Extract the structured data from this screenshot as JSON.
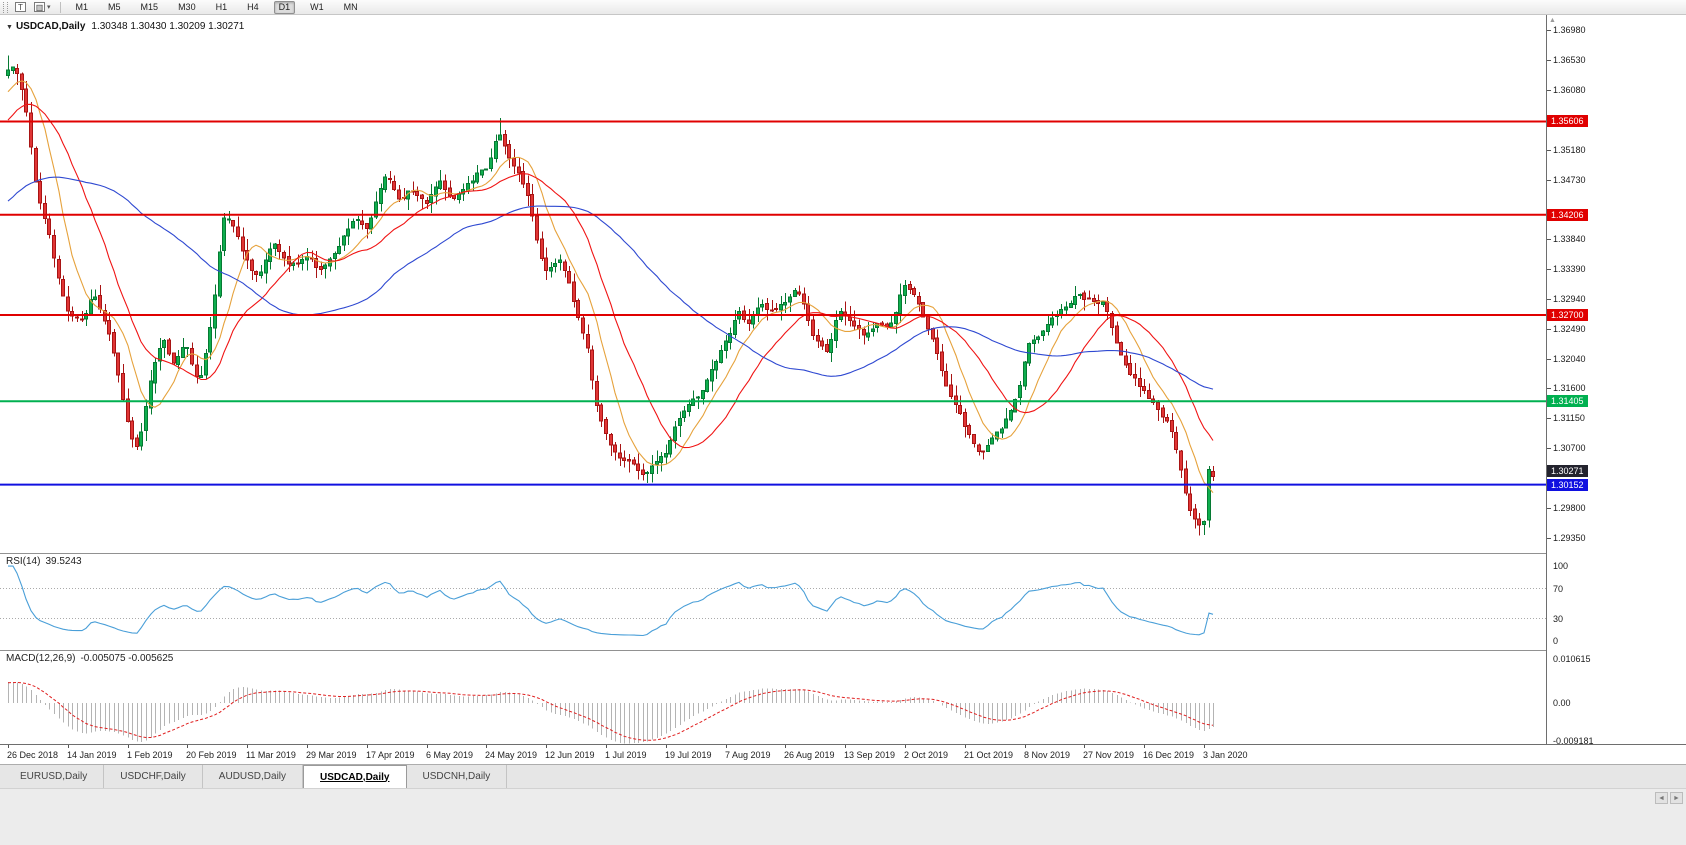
{
  "toolbar": {
    "timeframes": [
      "M1",
      "M5",
      "M15",
      "M30",
      "H1",
      "H4",
      "D1",
      "W1",
      "MN"
    ],
    "active_timeframe": "D1",
    "icons": {
      "cursor_tool": "T",
      "chart_template": "▥",
      "dropdown_caret": "▾"
    }
  },
  "chart": {
    "collapse_arrow": "▼",
    "symbol": "USDCAD,Daily",
    "ohlc": "1.30348 1.30430 1.30209 1.30271"
  },
  "rsi": {
    "name": "RSI(14)",
    "value": "39.5243",
    "color": "#4a9fd8",
    "levels": [
      70,
      30
    ],
    "axis_labels": [
      [
        "100",
        100
      ],
      [
        "70",
        70
      ],
      [
        "30",
        30
      ],
      [
        "0",
        0
      ]
    ]
  },
  "macd": {
    "name": "MACD(12,26,9)",
    "values": "-0.005075 -0.005625",
    "histogram_color": "#b4b4b4",
    "signal_color": "#e02020",
    "axis_labels": [
      [
        "0.010615",
        0.010615
      ],
      [
        "0.00",
        0
      ],
      [
        "-0.009181",
        -0.009181
      ]
    ]
  },
  "date_axis": {
    "labels": [
      "26 Dec 2018",
      "14 Jan 2019",
      "1 Feb 2019",
      "20 Feb 2019",
      "11 Mar 2019",
      "29 Mar 2019",
      "17 Apr 2019",
      "6 May 2019",
      "24 May 2019",
      "12 Jun 2019",
      "1 Jul 2019",
      "19 Jul 2019",
      "7 Aug 2019",
      "26 Aug 2019",
      "13 Sep 2019",
      "2 Oct 2019",
      "21 Oct 2019",
      "8 Nov 2019",
      "27 Nov 2019",
      "16 Dec 2019",
      "3 Jan 2020"
    ]
  },
  "tabs": {
    "items": [
      "EURUSD,Daily",
      "USDCHF,Daily",
      "AUDUSD,Daily",
      "USDCAD,Daily",
      "USDCNH,Daily"
    ],
    "active_index": 3
  },
  "misc": {
    "tab_scroll_left": "◄",
    "tab_scroll_right": "►",
    "axis_scroll_up": "▲"
  },
  "chart_data": {
    "type": "candlestick",
    "symbol": "USDCAD",
    "timeframe": "Daily",
    "last_bar": {
      "open": 1.30348,
      "high": 1.3043,
      "low": 1.30209,
      "close": 1.30271
    },
    "seed": 1337,
    "candle_count": 263,
    "label_every": 13,
    "axis_range": {
      "top": 1.37205,
      "bottom": 1.29125
    },
    "prehistory_anchors": [
      [
        -60,
        1.328
      ],
      [
        -45,
        1.332
      ],
      [
        -25,
        1.344
      ],
      [
        -10,
        1.356
      ],
      [
        -1,
        1.3638
      ]
    ],
    "price_anchors": [
      [
        0,
        1.3645
      ],
      [
        2,
        1.3638
      ],
      [
        4,
        1.358
      ],
      [
        6,
        1.347
      ],
      [
        9,
        1.339
      ],
      [
        13,
        1.3268
      ],
      [
        16,
        1.3255
      ],
      [
        19,
        1.3305
      ],
      [
        22,
        1.324
      ],
      [
        26,
        1.3105
      ],
      [
        28,
        1.3062
      ],
      [
        31,
        1.317
      ],
      [
        34,
        1.3245
      ],
      [
        36,
        1.3195
      ],
      [
        39,
        1.3225
      ],
      [
        42,
        1.3165
      ],
      [
        45,
        1.329
      ],
      [
        47,
        1.3435
      ],
      [
        50,
        1.339
      ],
      [
        52,
        1.335
      ],
      [
        55,
        1.333
      ],
      [
        58,
        1.3385
      ],
      [
        61,
        1.334
      ],
      [
        65,
        1.336
      ],
      [
        68,
        1.334
      ],
      [
        71,
        1.3355
      ],
      [
        75,
        1.3415
      ],
      [
        78,
        1.3395
      ],
      [
        82,
        1.349
      ],
      [
        85,
        1.344
      ],
      [
        88,
        1.3465
      ],
      [
        91,
        1.3435
      ],
      [
        94,
        1.3475
      ],
      [
        97,
        1.3445
      ],
      [
        100,
        1.3465
      ],
      [
        104,
        1.349
      ],
      [
        107,
        1.3545
      ],
      [
        109,
        1.35
      ],
      [
        112,
        1.3475
      ],
      [
        115,
        1.3385
      ],
      [
        117,
        1.3335
      ],
      [
        120,
        1.336
      ],
      [
        123,
        1.329
      ],
      [
        126,
        1.3225
      ],
      [
        128,
        1.313
      ],
      [
        130,
        1.309
      ],
      [
        133,
        1.306
      ],
      [
        136,
        1.304
      ],
      [
        139,
        1.3032
      ],
      [
        143,
        1.3062
      ],
      [
        146,
        1.312
      ],
      [
        149,
        1.314
      ],
      [
        152,
        1.3165
      ],
      [
        155,
        1.321
      ],
      [
        157,
        1.3245
      ],
      [
        159,
        1.328
      ],
      [
        161,
        1.325
      ],
      [
        164,
        1.329
      ],
      [
        167,
        1.327
      ],
      [
        169,
        1.329
      ],
      [
        172,
        1.331
      ],
      [
        175,
        1.3235
      ],
      [
        178,
        1.3215
      ],
      [
        181,
        1.3275
      ],
      [
        183,
        1.3255
      ],
      [
        186,
        1.324
      ],
      [
        189,
        1.3262
      ],
      [
        192,
        1.3245
      ],
      [
        195,
        1.332
      ],
      [
        198,
        1.3298
      ],
      [
        201,
        1.3235
      ],
      [
        204,
        1.3165
      ],
      [
        207,
        1.3125
      ],
      [
        209,
        1.3085
      ],
      [
        211,
        1.3062
      ],
      [
        214,
        1.3082
      ],
      [
        217,
        1.3105
      ],
      [
        220,
        1.3165
      ],
      [
        222,
        1.323
      ],
      [
        225,
        1.3245
      ],
      [
        228,
        1.3272
      ],
      [
        231,
        1.3292
      ],
      [
        233,
        1.3302
      ],
      [
        235,
        1.3285
      ],
      [
        238,
        1.3292
      ],
      [
        241,
        1.3235
      ],
      [
        244,
        1.318
      ],
      [
        247,
        1.3162
      ],
      [
        250,
        1.313
      ],
      [
        253,
        1.3092
      ],
      [
        255,
        1.3032
      ],
      [
        257,
        1.2972
      ],
      [
        259,
        1.2956
      ],
      [
        261,
        1.2968
      ],
      [
        262,
        1.3027
      ]
    ],
    "forced_candles": {
      "0": {
        "h": 1.366
      },
      "107": {
        "h": 1.3566
      },
      "259": {
        "l": 1.2939
      },
      "261": {
        "o": 1.2962,
        "h": 1.3043,
        "l": 1.2951,
        "c": 1.3038
      },
      "262": {
        "o": 1.30348,
        "h": 1.3043,
        "l": 1.30209,
        "c": 1.30271
      }
    },
    "horizontal_lines": [
      {
        "price": 1.35606,
        "label": "1.35606",
        "color": "#e00000"
      },
      {
        "price": 1.34206,
        "label": "1.34206",
        "color": "#e00000"
      },
      {
        "price": 1.327,
        "label": "1.32700",
        "color": "#e00000"
      },
      {
        "price": 1.31405,
        "label": "1.31405",
        "color": "#00b050"
      },
      {
        "price": 1.30152,
        "label": "1.30152",
        "color": "#1010e0"
      }
    ],
    "current_price": {
      "value": 1.30271,
      "label": "1.30271",
      "bg": "#23232e"
    },
    "price_ticks": [
      [
        "1.36980",
        1.3698
      ],
      [
        "1.36530",
        1.3653
      ],
      [
        "1.36080",
        1.3608
      ],
      [
        "1.35180",
        1.3518
      ],
      [
        "1.34730",
        1.3473
      ],
      [
        "1.33840",
        1.3384
      ],
      [
        "1.33390",
        1.3339
      ],
      [
        "1.32940",
        1.3294
      ],
      [
        "1.32490",
        1.3249
      ],
      [
        "1.32040",
        1.3204
      ],
      [
        "1.31600",
        1.316
      ],
      [
        "1.31150",
        1.3115
      ],
      [
        "1.30700",
        1.307
      ],
      [
        "1.29800",
        1.298
      ],
      [
        "1.29350",
        1.2935
      ]
    ],
    "colors": {
      "up": "#0fae4e",
      "up_border": "#067a33",
      "down": "#e03535",
      "down_border": "#a81414"
    },
    "mas": [
      {
        "period": 9,
        "color": "#e6a23c"
      },
      {
        "period": 20,
        "color": "#f01414"
      },
      {
        "period": 55,
        "color": "#2f49d1"
      }
    ],
    "indicators": {
      "rsi_period": 14,
      "macd": [
        12,
        26,
        9
      ]
    }
  }
}
